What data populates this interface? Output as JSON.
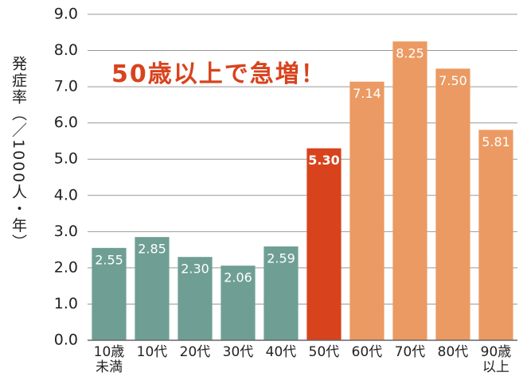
{
  "chart_data": {
    "type": "bar",
    "y_label": "発症率（／1000人・年）",
    "annotation": "50歳以上で急増！",
    "categories": [
      "10歳\n未満",
      "10代",
      "20代",
      "30代",
      "40代",
      "50代",
      "60代",
      "70代",
      "80代",
      "90歳\n以上"
    ],
    "values": [
      2.55,
      2.85,
      2.3,
      2.06,
      2.59,
      5.3,
      7.14,
      8.25,
      7.5,
      5.81
    ],
    "value_labels": [
      "2.55",
      "2.85",
      "2.30",
      "2.06",
      "2.59",
      "5.30",
      "7.14",
      "8.25",
      "7.50",
      "5.81"
    ],
    "colors": [
      "#6f9f94",
      "#6f9f94",
      "#6f9f94",
      "#6f9f94",
      "#6f9f94",
      "#d8431d",
      "#eb9a63",
      "#eb9a63",
      "#eb9a63",
      "#eb9a63"
    ],
    "ylim": [
      0,
      9
    ],
    "yticks": [
      {
        "value": 0,
        "label": "0.0"
      },
      {
        "value": 1,
        "label": "1.0"
      },
      {
        "value": 2,
        "label": "2.0"
      },
      {
        "value": 3,
        "label": "3.0"
      },
      {
        "value": 4,
        "label": "4.0"
      },
      {
        "value": 5,
        "label": "5.0"
      },
      {
        "value": 6,
        "label": "6.0"
      },
      {
        "value": 7,
        "label": "7.0"
      },
      {
        "value": 8,
        "label": "8.0"
      },
      {
        "value": 9,
        "label": "9.0"
      }
    ],
    "grid": true
  }
}
